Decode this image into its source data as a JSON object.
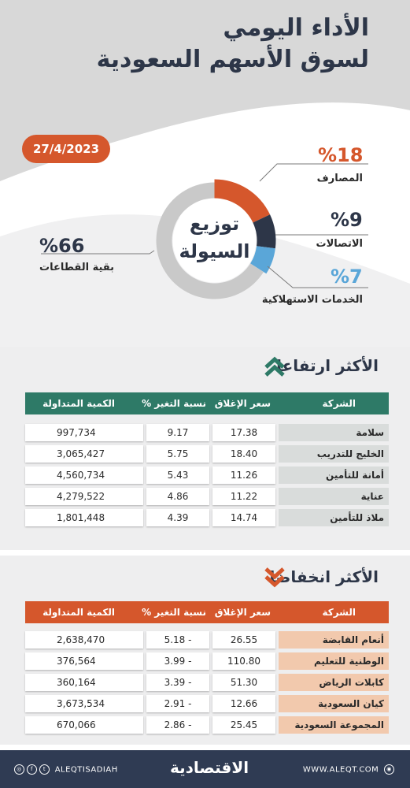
{
  "header": {
    "title_line1": "الأداء اليومي",
    "title_line2": "لسوق الأسهم السعودية",
    "date": "27/4/2023"
  },
  "liquidity": {
    "center_line1": "توزيع",
    "center_line2": "السيولة",
    "segments": [
      {
        "label": "المصارف",
        "pct_text": "%18",
        "value": 18,
        "color": "#d5572c"
      },
      {
        "label": "الاتصالات",
        "pct_text": "%9",
        "value": 9,
        "color": "#2d3648"
      },
      {
        "label": "الخدمات الاستهلاكية",
        "pct_text": "%7",
        "value": 7,
        "color": "#5aa6d8"
      },
      {
        "label": "بقية القطاعات",
        "pct_text": "%66",
        "value": 66,
        "color": "#c9c9c9"
      }
    ]
  },
  "gainers": {
    "title": "الأكثر ارتفاعا",
    "header_color": "#2e7a67",
    "name_bg": "#d9dcdb",
    "columns": {
      "company": "الشركة",
      "close": "سعر الإغلاق",
      "change": "نسبة التغير %",
      "volume": "الكمية المتداولة"
    },
    "rows": [
      {
        "company": "سلامة",
        "close": "17.38",
        "change": "9.17",
        "volume": "997,734"
      },
      {
        "company": "الخليج للتدريب",
        "close": "18.40",
        "change": "5.75",
        "volume": "3,065,427"
      },
      {
        "company": "أمانة للتأمين",
        "close": "11.26",
        "change": "5.43",
        "volume": "4,560,734"
      },
      {
        "company": "عناية",
        "close": "11.22",
        "change": "4.86",
        "volume": "4,279,522"
      },
      {
        "company": "ملاذ للتأمين",
        "close": "14.74",
        "change": "4.39",
        "volume": "1,801,448"
      }
    ]
  },
  "losers": {
    "title": "الأكثر انخفاضا",
    "header_color": "#d5572c",
    "name_bg": "#f2c9ad",
    "columns": {
      "company": "الشركة",
      "close": "سعر الإغلاق",
      "change": "نسبة التغير %",
      "volume": "الكمية المتداولة"
    },
    "rows": [
      {
        "company": "أنعام القابضة",
        "close": "26.55",
        "change": "- 5.18",
        "volume": "2,638,470"
      },
      {
        "company": "الوطنية للتعليم",
        "close": "110.80",
        "change": "- 3.99",
        "volume": "376,564"
      },
      {
        "company": "كابلات الرياض",
        "close": "51.30",
        "change": "- 3.39",
        "volume": "360,164"
      },
      {
        "company": "كيان السعودية",
        "close": "12.66",
        "change": "- 2.91",
        "volume": "3,673,534"
      },
      {
        "company": "المجموعة السعودية",
        "close": "25.45",
        "change": "- 2.86",
        "volume": "670,066"
      }
    ]
  },
  "footer": {
    "social_handle": "ALEQTISADIAH",
    "logo": "الاقتصادية",
    "website": "WWW.ALEQT.COM"
  }
}
